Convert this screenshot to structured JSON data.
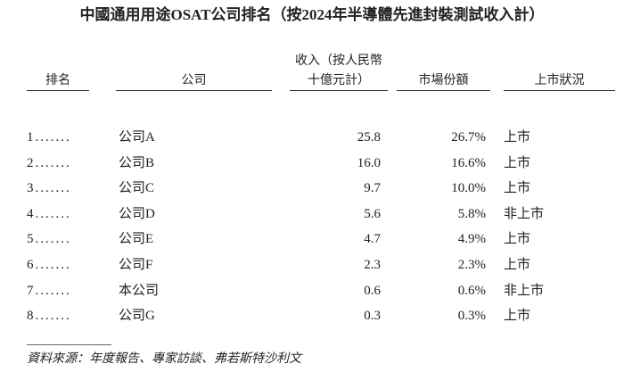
{
  "title": "中國通用用途OSAT公司排名（按2024年半導體先進封裝測試收入計）",
  "table": {
    "header": {
      "rank": "排名",
      "company": "公司",
      "revenue_line1": "收入（按人民幣",
      "revenue_line2": "十億元計）",
      "share": "市場份額",
      "status": "上市狀況"
    },
    "rows": [
      [
        "1.......",
        "公司A",
        "25.8",
        "26.7%",
        "上市"
      ],
      [
        "2.......",
        "公司B",
        "16.0",
        "16.6%",
        "上市"
      ],
      [
        "3.......",
        "公司C",
        "9.7",
        "10.0%",
        "上市"
      ],
      [
        "4.......",
        "公司D",
        "5.6",
        "5.8%",
        "非上市"
      ],
      [
        "5.......",
        "公司E",
        "4.7",
        "4.9%",
        "上市"
      ],
      [
        "6.......",
        "公司F",
        "2.3",
        "2.3%",
        "上市"
      ],
      [
        "7.......",
        "本公司",
        "0.6",
        "0.6%",
        "非上市"
      ],
      [
        "8.......",
        "公司G",
        "0.3",
        "0.3%",
        "上市"
      ]
    ]
  },
  "source": "資料來源：年度報告、專家訪談、弗若斯特沙利文"
}
